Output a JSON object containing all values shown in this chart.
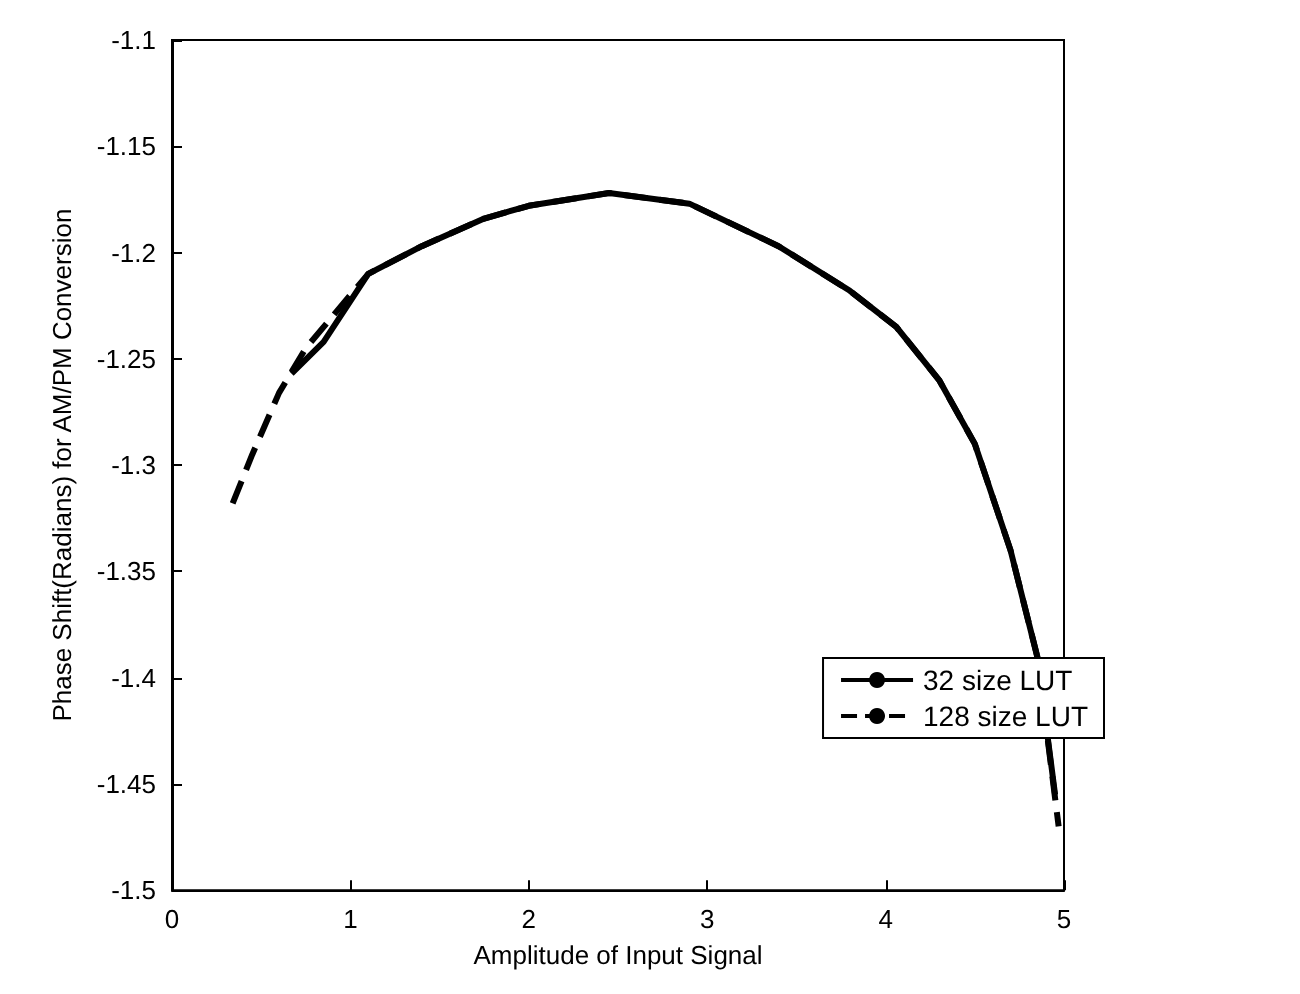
{
  "chart_data": {
    "type": "line",
    "xlabel": "Amplitude of Input Signal",
    "ylabel": "Phase Shift(Radians) for AM/PM Conversion",
    "xlim": [
      0,
      5
    ],
    "xticks": [
      0,
      1,
      2,
      3,
      4,
      5
    ],
    "ylim": [
      -1.5,
      -1.1
    ],
    "yticks": [
      -1.5,
      -1.45,
      -1.4,
      -1.35,
      -1.3,
      -1.25,
      -1.2,
      -1.15,
      -1.1
    ],
    "grid": false,
    "legend": "bottom right",
    "marker": "none",
    "series": [
      {
        "name": "32 size LUT",
        "color": "#000000",
        "line_style": "solid",
        "x": [
          0.67,
          0.85,
          1.1,
          1.4,
          1.75,
          2,
          2.45,
          2.9,
          3.4,
          3.8,
          4.06,
          4.3,
          4.5,
          4.7,
          4.85,
          4.95
        ],
        "values": [
          -1.257,
          -1.242,
          -1.21,
          -1.197,
          -1.184,
          -1.178,
          -1.172,
          -1.177,
          -1.197,
          -1.218,
          -1.235,
          -1.26,
          -1.29,
          -1.34,
          -1.39,
          -1.455
        ]
      },
      {
        "name": "128 size LUT",
        "color": "#000000",
        "line_style": "dashed",
        "x": [
          0.34,
          0.45,
          0.6,
          0.75,
          0.9,
          1.1,
          1.4,
          1.75,
          2,
          2.45,
          2.9,
          3.4,
          3.8,
          4.06,
          4.3,
          4.5,
          4.7,
          4.85,
          4.97
        ],
        "values": [
          -1.318,
          -1.295,
          -1.266,
          -1.245,
          -1.23,
          -1.21,
          -1.197,
          -1.184,
          -1.178,
          -1.172,
          -1.177,
          -1.197,
          -1.218,
          -1.235,
          -1.26,
          -1.29,
          -1.34,
          -1.39,
          -1.47
        ]
      }
    ]
  }
}
